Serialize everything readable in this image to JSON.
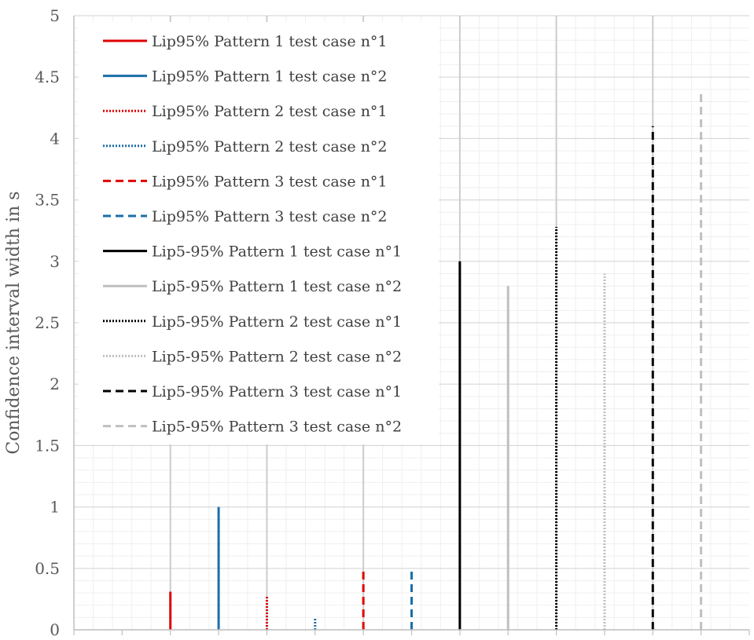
{
  "chart_data": {
    "type": "bar",
    "title": "",
    "xlabel": "",
    "ylabel": "Confidence interval width in s",
    "ylim": [
      0,
      5
    ],
    "yticks": [
      {
        "value": 0,
        "label": "0"
      },
      {
        "value": 0.5,
        "label": "0.5"
      },
      {
        "value": 1,
        "label": "1"
      },
      {
        "value": 1.5,
        "label": "1.5"
      },
      {
        "value": 2,
        "label": "2"
      },
      {
        "value": 2.5,
        "label": "2.5"
      },
      {
        "value": 3,
        "label": "3"
      },
      {
        "value": 3.5,
        "label": "3.5"
      },
      {
        "value": 4,
        "label": "4"
      },
      {
        "value": 4.5,
        "label": "4.5"
      },
      {
        "value": 5,
        "label": "5"
      }
    ],
    "grid": true,
    "legend_position": "top-left",
    "series": [
      {
        "name": "Lip95% Pattern 1 test case n°1",
        "value": 0.31,
        "color": "#e00000",
        "dash": "solid"
      },
      {
        "name": "Lip95% Pattern 1 test case n°2",
        "value": 1.0,
        "color": "#1a6ea8",
        "dash": "solid"
      },
      {
        "name": "Lip95% Pattern 2 test case n°1",
        "value": 0.28,
        "color": "#e00000",
        "dash": "dotted"
      },
      {
        "name": "Lip95% Pattern 2 test case n°2",
        "value": 0.1,
        "color": "#1a6ea8",
        "dash": "dotted"
      },
      {
        "name": "Lip95% Pattern 3 test case n°1",
        "value": 0.48,
        "color": "#e00000",
        "dash": "dashed"
      },
      {
        "name": "Lip95% Pattern 3 test case n°2",
        "value": 0.48,
        "color": "#1a6ea8",
        "dash": "dashed"
      },
      {
        "name": "Lip5-95% Pattern 1 test case n°1",
        "value": 3.0,
        "color": "#000000",
        "dash": "solid"
      },
      {
        "name": "Lip5-95% Pattern 1 test case n°2",
        "value": 2.8,
        "color": "#bfbfbf",
        "dash": "solid"
      },
      {
        "name": "Lip5-95% Pattern 2 test case n°1",
        "value": 3.28,
        "color": "#000000",
        "dash": "dotted"
      },
      {
        "name": "Lip5-95% Pattern 2 test case n°2",
        "value": 2.9,
        "color": "#bfbfbf",
        "dash": "dotted"
      },
      {
        "name": "Lip5-95% Pattern 3 test case n°1",
        "value": 4.1,
        "color": "#000000",
        "dash": "dashed"
      },
      {
        "name": "Lip5-95% Pattern 3 test case n°2",
        "value": 4.38,
        "color": "#bfbfbf",
        "dash": "dashed"
      }
    ]
  }
}
